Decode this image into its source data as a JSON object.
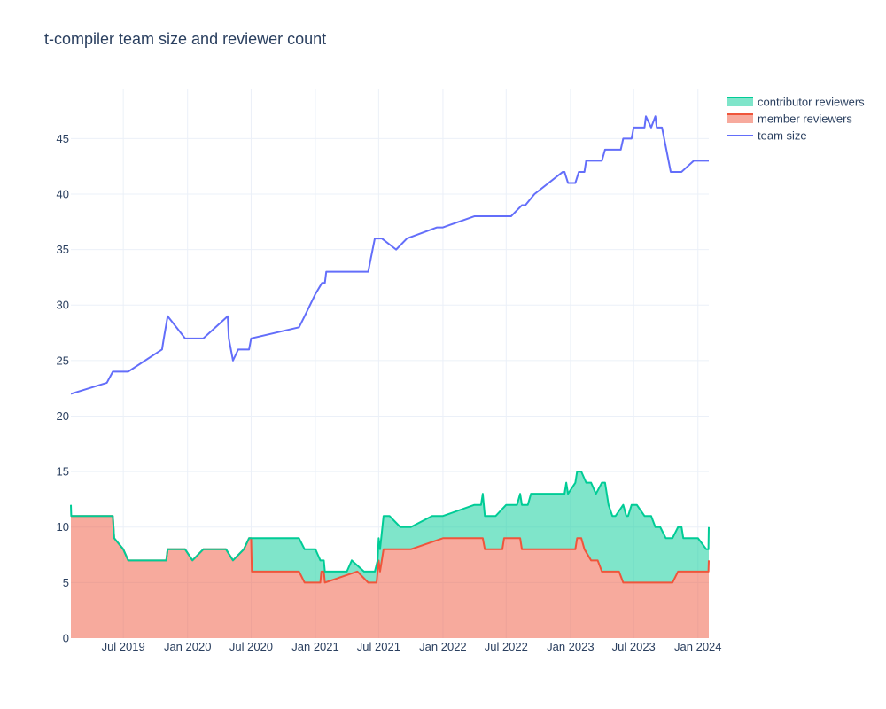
{
  "chart_data": {
    "type": "area",
    "title": "t-compiler team size and reviewer count",
    "xlabel": "",
    "ylabel": "",
    "xrange": [
      "2019-02-01",
      "2024-02-01"
    ],
    "ylim": [
      0,
      49.5
    ],
    "y_ticks": [
      0,
      5,
      10,
      15,
      20,
      25,
      30,
      35,
      40,
      45
    ],
    "x_ticks": [
      {
        "date": "2019-07-01",
        "label": "Jul 2019"
      },
      {
        "date": "2020-01-01",
        "label": "Jan 2020"
      },
      {
        "date": "2020-07-01",
        "label": "Jul 2020"
      },
      {
        "date": "2021-01-01",
        "label": "Jan 2021"
      },
      {
        "date": "2021-07-01",
        "label": "Jul 2021"
      },
      {
        "date": "2022-01-01",
        "label": "Jan 2022"
      },
      {
        "date": "2022-07-01",
        "label": "Jul 2022"
      },
      {
        "date": "2023-01-01",
        "label": "Jan 2023"
      },
      {
        "date": "2023-07-01",
        "label": "Jul 2023"
      },
      {
        "date": "2024-01-01",
        "label": "Jan 2024"
      }
    ],
    "grid": true,
    "legend_position": "top-right",
    "series": [
      {
        "name": "contributor reviewers",
        "kind": "stacked-area",
        "color": "#00cc96",
        "points": [
          [
            "2019-02-01",
            12
          ],
          [
            "2019-02-02",
            11
          ],
          [
            "2019-06-01",
            11
          ],
          [
            "2019-06-05",
            9
          ],
          [
            "2019-07-01",
            8
          ],
          [
            "2019-07-15",
            7
          ],
          [
            "2019-11-01",
            7
          ],
          [
            "2019-11-05",
            8
          ],
          [
            "2019-12-25",
            8
          ],
          [
            "2020-01-15",
            7
          ],
          [
            "2020-02-15",
            8
          ],
          [
            "2020-04-20",
            8
          ],
          [
            "2020-05-10",
            7
          ],
          [
            "2020-06-10",
            8
          ],
          [
            "2020-06-25",
            9
          ],
          [
            "2020-11-15",
            9
          ],
          [
            "2020-12-01",
            8
          ],
          [
            "2021-01-01",
            8
          ],
          [
            "2021-01-15",
            7
          ],
          [
            "2021-01-25",
            7
          ],
          [
            "2021-01-28",
            6
          ],
          [
            "2021-04-01",
            6
          ],
          [
            "2021-04-15",
            7
          ],
          [
            "2021-05-20",
            6
          ],
          [
            "2021-06-20",
            6
          ],
          [
            "2021-06-28",
            7
          ],
          [
            "2021-07-01",
            9
          ],
          [
            "2021-07-05",
            8
          ],
          [
            "2021-07-15",
            11
          ],
          [
            "2021-08-01",
            11
          ],
          [
            "2021-09-01",
            10
          ],
          [
            "2021-10-01",
            10
          ],
          [
            "2021-12-01",
            11
          ],
          [
            "2022-01-01",
            11
          ],
          [
            "2022-04-01",
            12
          ],
          [
            "2022-04-20",
            12
          ],
          [
            "2022-04-25",
            13
          ],
          [
            "2022-05-01",
            11
          ],
          [
            "2022-06-01",
            11
          ],
          [
            "2022-07-01",
            12
          ],
          [
            "2022-08-01",
            12
          ],
          [
            "2022-08-10",
            13
          ],
          [
            "2022-08-15",
            12
          ],
          [
            "2022-09-01",
            12
          ],
          [
            "2022-09-10",
            13
          ],
          [
            "2022-12-15",
            13
          ],
          [
            "2022-12-20",
            14
          ],
          [
            "2022-12-25",
            13
          ],
          [
            "2023-01-15",
            14
          ],
          [
            "2023-01-20",
            15
          ],
          [
            "2023-02-01",
            15
          ],
          [
            "2023-02-15",
            14
          ],
          [
            "2023-03-01",
            14
          ],
          [
            "2023-03-15",
            13
          ],
          [
            "2023-04-01",
            14
          ],
          [
            "2023-04-10",
            14
          ],
          [
            "2023-04-20",
            12
          ],
          [
            "2023-05-01",
            11
          ],
          [
            "2023-05-10",
            11
          ],
          [
            "2023-06-01",
            12
          ],
          [
            "2023-06-10",
            11
          ],
          [
            "2023-06-15",
            11
          ],
          [
            "2023-06-25",
            12
          ],
          [
            "2023-07-10",
            12
          ],
          [
            "2023-08-01",
            11
          ],
          [
            "2023-08-20",
            11
          ],
          [
            "2023-09-01",
            10
          ],
          [
            "2023-09-15",
            10
          ],
          [
            "2023-10-01",
            9
          ],
          [
            "2023-10-20",
            9
          ],
          [
            "2023-11-05",
            10
          ],
          [
            "2023-11-15",
            10
          ],
          [
            "2023-11-20",
            9
          ],
          [
            "2024-01-01",
            9
          ],
          [
            "2024-01-25",
            8
          ],
          [
            "2024-01-31",
            8
          ],
          [
            "2024-02-01",
            10
          ]
        ]
      },
      {
        "name": "member reviewers",
        "kind": "area",
        "color": "#ef553b",
        "points": [
          [
            "2019-02-01",
            11
          ],
          [
            "2019-06-01",
            11
          ],
          [
            "2019-06-05",
            9
          ],
          [
            "2019-07-01",
            8
          ],
          [
            "2019-07-15",
            7
          ],
          [
            "2019-11-01",
            7
          ],
          [
            "2019-11-05",
            8
          ],
          [
            "2019-12-25",
            8
          ],
          [
            "2020-01-15",
            7
          ],
          [
            "2020-02-15",
            8
          ],
          [
            "2020-04-20",
            8
          ],
          [
            "2020-05-10",
            7
          ],
          [
            "2020-06-10",
            8
          ],
          [
            "2020-06-25",
            9
          ],
          [
            "2020-07-01",
            9
          ],
          [
            "2020-07-03",
            6
          ],
          [
            "2020-11-15",
            6
          ],
          [
            "2020-12-01",
            5
          ],
          [
            "2021-01-01",
            5
          ],
          [
            "2021-01-15",
            5
          ],
          [
            "2021-01-18",
            6
          ],
          [
            "2021-01-25",
            6
          ],
          [
            "2021-01-28",
            5
          ],
          [
            "2021-05-01",
            6
          ],
          [
            "2021-06-01",
            5
          ],
          [
            "2021-06-25",
            5
          ],
          [
            "2021-07-01",
            7
          ],
          [
            "2021-07-05",
            6
          ],
          [
            "2021-07-15",
            8
          ],
          [
            "2021-10-01",
            8
          ],
          [
            "2022-01-01",
            9
          ],
          [
            "2022-04-25",
            9
          ],
          [
            "2022-05-01",
            8
          ],
          [
            "2022-06-20",
            8
          ],
          [
            "2022-06-25",
            9
          ],
          [
            "2022-08-10",
            9
          ],
          [
            "2022-08-15",
            8
          ],
          [
            "2022-12-15",
            8
          ],
          [
            "2023-01-15",
            8
          ],
          [
            "2023-01-20",
            9
          ],
          [
            "2023-02-01",
            9
          ],
          [
            "2023-02-10",
            8
          ],
          [
            "2023-03-01",
            7
          ],
          [
            "2023-03-20",
            7
          ],
          [
            "2023-04-01",
            6
          ],
          [
            "2023-05-20",
            6
          ],
          [
            "2023-06-01",
            5
          ],
          [
            "2023-10-20",
            5
          ],
          [
            "2023-11-05",
            6
          ],
          [
            "2024-01-31",
            6
          ],
          [
            "2024-02-01",
            7
          ]
        ]
      },
      {
        "name": "team size",
        "kind": "line",
        "color": "#636efa",
        "points": [
          [
            "2019-02-01",
            22
          ],
          [
            "2019-05-15",
            23
          ],
          [
            "2019-06-01",
            24
          ],
          [
            "2019-07-15",
            24
          ],
          [
            "2019-10-20",
            26
          ],
          [
            "2019-10-25",
            27
          ],
          [
            "2019-11-05",
            29
          ],
          [
            "2019-12-25",
            27
          ],
          [
            "2020-02-15",
            27
          ],
          [
            "2020-04-25",
            29
          ],
          [
            "2020-04-28",
            27
          ],
          [
            "2020-05-10",
            25
          ],
          [
            "2020-05-25",
            26
          ],
          [
            "2020-06-25",
            26
          ],
          [
            "2020-07-01",
            27
          ],
          [
            "2020-11-15",
            28
          ],
          [
            "2020-12-01",
            29
          ],
          [
            "2021-01-01",
            31
          ],
          [
            "2021-01-20",
            32
          ],
          [
            "2021-01-28",
            32
          ],
          [
            "2021-02-01",
            33
          ],
          [
            "2021-06-01",
            33
          ],
          [
            "2021-06-20",
            36
          ],
          [
            "2021-07-10",
            36
          ],
          [
            "2021-08-20",
            35
          ],
          [
            "2021-09-20",
            36
          ],
          [
            "2021-12-15",
            37
          ],
          [
            "2022-01-01",
            37
          ],
          [
            "2022-04-01",
            38
          ],
          [
            "2022-07-15",
            38
          ],
          [
            "2022-08-15",
            39
          ],
          [
            "2022-08-25",
            39
          ],
          [
            "2022-09-20",
            40
          ],
          [
            "2022-12-10",
            42
          ],
          [
            "2022-12-15",
            42
          ],
          [
            "2022-12-25",
            41
          ],
          [
            "2023-01-15",
            41
          ],
          [
            "2023-01-25",
            42
          ],
          [
            "2023-02-10",
            42
          ],
          [
            "2023-02-15",
            43
          ],
          [
            "2023-04-01",
            43
          ],
          [
            "2023-04-10",
            44
          ],
          [
            "2023-05-25",
            44
          ],
          [
            "2023-06-01",
            45
          ],
          [
            "2023-06-25",
            45
          ],
          [
            "2023-07-01",
            46
          ],
          [
            "2023-08-01",
            46
          ],
          [
            "2023-08-05",
            47
          ],
          [
            "2023-08-20",
            46
          ],
          [
            "2023-09-01",
            47
          ],
          [
            "2023-09-05",
            46
          ],
          [
            "2023-09-20",
            46
          ],
          [
            "2023-10-15",
            42
          ],
          [
            "2023-11-15",
            42
          ],
          [
            "2023-12-20",
            43
          ],
          [
            "2024-02-01",
            43
          ]
        ]
      }
    ]
  }
}
